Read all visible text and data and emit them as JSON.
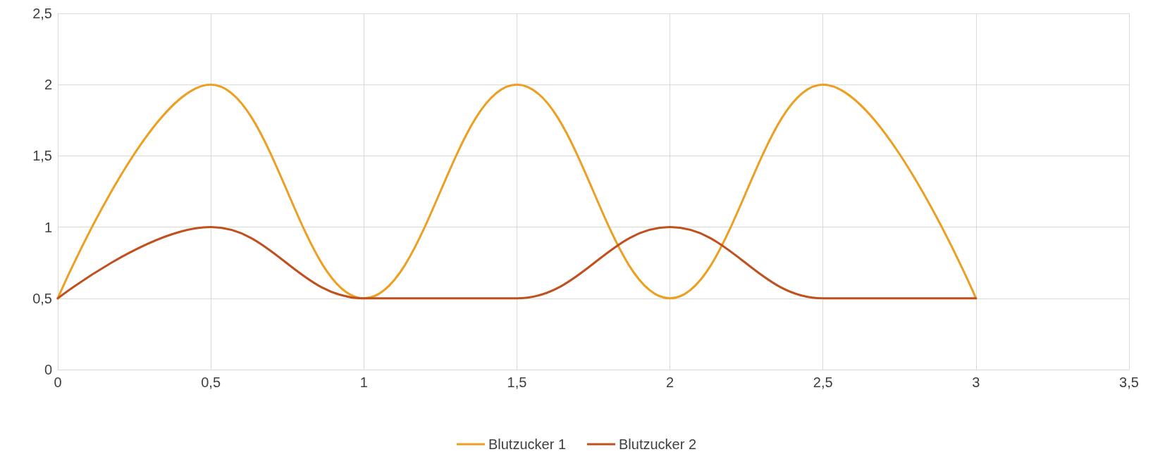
{
  "chart_data": {
    "type": "line",
    "x": [
      0,
      0.5,
      1,
      1.5,
      2,
      2.5,
      3
    ],
    "series": [
      {
        "name": "Blutzucker 1",
        "color": "#ed9f22",
        "values": [
          0.5,
          2,
          0.5,
          2,
          0.5,
          2,
          0.5
        ]
      },
      {
        "name": "Blutzucker 2",
        "color": "#c0501e",
        "values": [
          0.5,
          1,
          0.5,
          0.5,
          1,
          0.5,
          0.5
        ]
      }
    ],
    "xlim": [
      0,
      3.5
    ],
    "xticks": [
      0,
      {
        "value": 0.5,
        "label": "0,5"
      },
      1,
      {
        "value": 1.5,
        "label": "1,5"
      },
      2,
      {
        "value": 2.5,
        "label": "2,5"
      },
      3,
      {
        "value": 3.5,
        "label": "3,5"
      }
    ],
    "ylim": [
      0,
      2.5
    ],
    "yticks": [
      0,
      {
        "value": 0.5,
        "label": "0,5"
      },
      1,
      {
        "value": 1.5,
        "label": "1,5"
      },
      2,
      {
        "value": 2.5,
        "label": "2,5"
      }
    ],
    "grid": true,
    "legend": "bottom",
    "marker": "none",
    "line_style": "solid"
  }
}
